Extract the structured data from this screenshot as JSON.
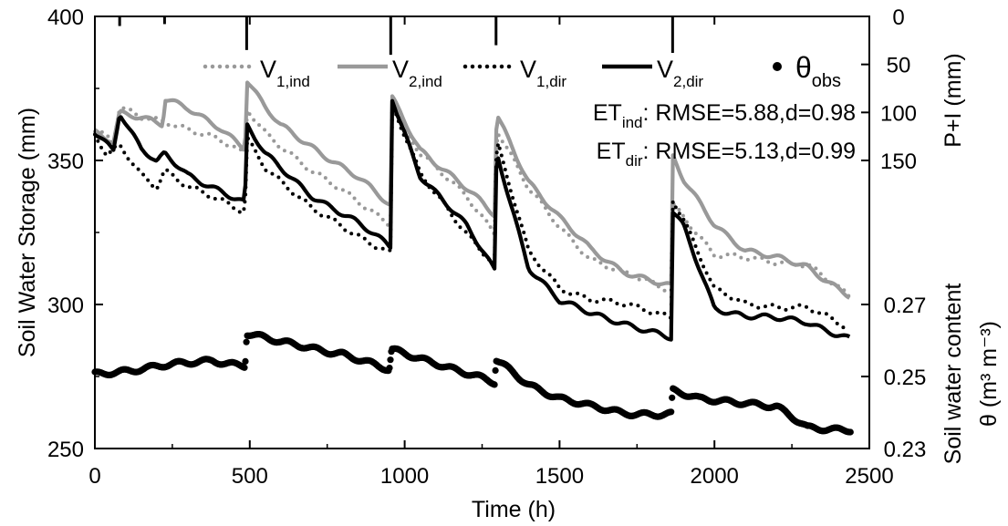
{
  "chart_data": {
    "type": "line",
    "xlabel": "Time (h)",
    "ylabel_left": "Soil Water Storage (mm)",
    "ylabel_right_top": "P+I (mm)",
    "ylabel_right_bottom_line1": "Soil water content",
    "ylabel_right_bottom_line2": "θ (m³ m⁻³)",
    "xlim": [
      0,
      2500
    ],
    "xticks": [
      "0",
      "500",
      "1000",
      "1500",
      "2000",
      "2500"
    ],
    "ylim_left": [
      250,
      400
    ],
    "yticks_left": [
      "250",
      "300",
      "350",
      "400"
    ],
    "ylim_right_top": [
      0,
      150
    ],
    "yticks_right_top": [
      "0",
      "50",
      "100",
      "150"
    ],
    "ylim_right_theta": [
      0.23,
      0.27
    ],
    "yticks_right_theta": [
      "0.23",
      "0.25",
      "0.27"
    ],
    "legend": {
      "placement": "top",
      "items": [
        {
          "base": "V",
          "sub": "1,ind",
          "style": "dotted",
          "color": "#999999"
        },
        {
          "base": "V",
          "sub": "2,ind",
          "style": "solid",
          "color": "#999999"
        },
        {
          "base": "V",
          "sub": "1,dir",
          "style": "dotted",
          "color": "#000000"
        },
        {
          "base": "V",
          "sub": "2,dir",
          "style": "solid",
          "color": "#000000"
        },
        {
          "base": "θ",
          "sub": "obs",
          "style": "dots",
          "color": "#000000"
        }
      ]
    },
    "annotations": [
      {
        "base": "ET",
        "sub": "ind",
        "rest": ": RMSE=5.88,d=0.98"
      },
      {
        "base": "ET",
        "sub": "dir",
        "rest": ": RMSE=5.13,d=0.99"
      }
    ],
    "precip_events": [
      {
        "x": 80,
        "value": 10
      },
      {
        "x": 225,
        "value": 8
      },
      {
        "x": 490,
        "value": 35
      },
      {
        "x": 955,
        "value": 40
      },
      {
        "x": 1295,
        "value": 30
      },
      {
        "x": 1865,
        "value": 38
      }
    ],
    "series": [
      {
        "name": "V1,ind",
        "style": "dotted",
        "color": "#999999",
        "x": [
          0,
          60,
          80,
          150,
          220,
          225,
          300,
          400,
          485,
          490,
          550,
          700,
          850,
          955,
          958,
          1050,
          1200,
          1290,
          1297,
          1400,
          1500,
          1600,
          1700,
          1860,
          1865,
          1900,
          2000,
          2100,
          2300,
          2440
        ],
        "y": [
          360,
          357,
          368,
          365,
          364,
          364,
          361,
          357,
          352,
          368,
          360,
          346,
          336,
          328,
          369,
          352,
          338,
          325,
          361,
          340,
          327,
          316,
          311,
          305,
          335,
          331,
          317,
          316,
          314,
          302
        ]
      },
      {
        "name": "V2,ind",
        "style": "solid",
        "color": "#999999",
        "x": [
          0,
          60,
          80,
          150,
          220,
          225,
          300,
          400,
          485,
          490,
          550,
          600,
          700,
          850,
          955,
          958,
          1050,
          1200,
          1290,
          1297,
          1400,
          1500,
          1600,
          1700,
          1860,
          1865,
          1900,
          2000,
          2100,
          2300,
          2440
        ],
        "y": [
          360,
          357,
          367,
          365,
          362,
          371,
          368,
          362,
          354,
          378,
          368,
          362,
          355,
          344,
          334,
          372,
          354,
          340,
          331,
          366,
          343,
          330,
          319,
          312,
          306,
          351,
          343,
          328,
          319,
          313,
          303
        ]
      },
      {
        "name": "V1,dir",
        "style": "dotted",
        "color": "#000000",
        "x": [
          0,
          40,
          80,
          150,
          200,
          225,
          300,
          400,
          485,
          490,
          550,
          700,
          850,
          955,
          958,
          1050,
          1200,
          1290,
          1297,
          1400,
          1500,
          1600,
          1700,
          1860,
          1865,
          1900,
          2000,
          2100,
          2300,
          2440
        ],
        "y": [
          359,
          351,
          355,
          345,
          341,
          347,
          341,
          336,
          332,
          358,
          348,
          333,
          324,
          318,
          370,
          345,
          325,
          314,
          357,
          318,
          306,
          302,
          300,
          296,
          337,
          330,
          305,
          300,
          299,
          291
        ]
      },
      {
        "name": "V2,dir",
        "style": "solid",
        "color": "#000000",
        "x": [
          0,
          60,
          80,
          110,
          150,
          200,
          225,
          300,
          400,
          485,
          490,
          550,
          700,
          850,
          955,
          958,
          1050,
          1200,
          1290,
          1297,
          1400,
          1500,
          1600,
          1700,
          1860,
          1865,
          1900,
          2000,
          2100,
          2300,
          2440
        ],
        "y": [
          360,
          354,
          367,
          361,
          354,
          349,
          352,
          345,
          340,
          335,
          362,
          352,
          338,
          328,
          320,
          372,
          345,
          327,
          312,
          353,
          313,
          301,
          297,
          294,
          288,
          332,
          327,
          299,
          296,
          294,
          288
        ]
      }
    ],
    "theta_obs": {
      "name": "θobs",
      "color": "#000000",
      "x": [
        0,
        100,
        200,
        300,
        380,
        485,
        490,
        600,
        800,
        950,
        958,
        1100,
        1290,
        1295,
        1400,
        1500,
        1600,
        1700,
        1860,
        1865,
        1950,
        2100,
        2200,
        2300,
        2440
      ],
      "y": [
        0.2505,
        0.2518,
        0.2528,
        0.2535,
        0.2545,
        0.2532,
        0.2622,
        0.2593,
        0.2565,
        0.2515,
        0.2572,
        0.254,
        0.248,
        0.2545,
        0.248,
        0.244,
        0.2415,
        0.24,
        0.2395,
        0.246,
        0.2435,
        0.243,
        0.2415,
        0.2355,
        0.2355
      ]
    }
  }
}
